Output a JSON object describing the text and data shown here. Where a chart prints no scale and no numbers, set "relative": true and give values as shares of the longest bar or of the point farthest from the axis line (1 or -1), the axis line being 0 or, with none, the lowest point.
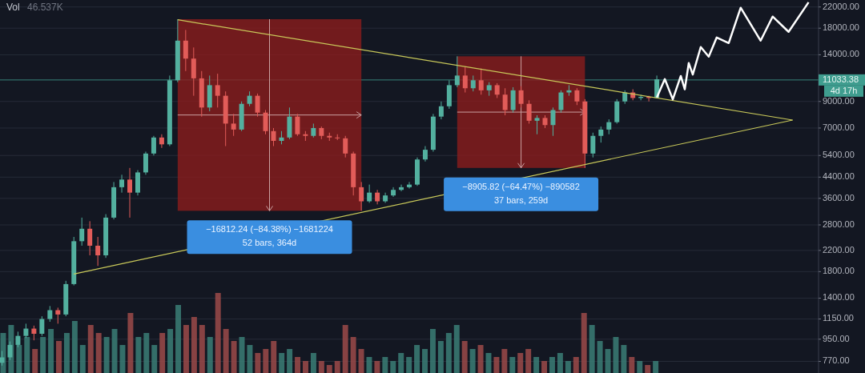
{
  "chart_data": [
    {
      "type": "candlestick",
      "log": true,
      "tick_labels": false,
      "ylim": [
        690,
        23500
      ],
      "categories": [
        null,
        null,
        null,
        null,
        null,
        null,
        null,
        null,
        null,
        null,
        null,
        null,
        null,
        null,
        null,
        null,
        null,
        null,
        null,
        null,
        null,
        null,
        null,
        null,
        null,
        null,
        null,
        null,
        null,
        null,
        null,
        null,
        null,
        null,
        null,
        null,
        null,
        null,
        null,
        null,
        null,
        null,
        null,
        null,
        null,
        null,
        null,
        null,
        null,
        null,
        null,
        null,
        null,
        null,
        null,
        null,
        null,
        null,
        null,
        null,
        null,
        null,
        null,
        null,
        null,
        null,
        null,
        null,
        null,
        null,
        null,
        null,
        null,
        null,
        null,
        null,
        null,
        null,
        null,
        null,
        null,
        null,
        null
      ],
      "ohlc": [
        [
          760,
          850,
          740,
          800
        ],
        [
          800,
          930,
          780,
          900
        ],
        [
          900,
          1020,
          880,
          980
        ],
        [
          980,
          1100,
          960,
          1050
        ],
        [
          1050,
          1080,
          940,
          1000
        ],
        [
          1000,
          1180,
          980,
          1150
        ],
        [
          1150,
          1300,
          1120,
          1250
        ],
        [
          1250,
          1280,
          1100,
          1200
        ],
        [
          1200,
          1650,
          1180,
          1600
        ],
        [
          1600,
          2500,
          1580,
          2400
        ],
        [
          2400,
          3000,
          2300,
          2700
        ],
        [
          2700,
          2900,
          2100,
          2300
        ],
        [
          2300,
          2500,
          1900,
          2100
        ],
        [
          2100,
          3100,
          2050,
          3000
        ],
        [
          3000,
          4200,
          2950,
          4000
        ],
        [
          4000,
          4500,
          3800,
          4300
        ],
        [
          4300,
          4800,
          3000,
          3800
        ],
        [
          3800,
          4700,
          3700,
          4600
        ],
        [
          4600,
          5600,
          4500,
          5500
        ],
        [
          5500,
          6500,
          5400,
          6400
        ],
        [
          6400,
          6600,
          5800,
          6000
        ],
        [
          6000,
          11500,
          5900,
          11000
        ],
        [
          11000,
          19600,
          10800,
          16000
        ],
        [
          16000,
          17700,
          12000,
          13500
        ],
        [
          13500,
          15000,
          9500,
          11200
        ],
        [
          11200,
          12000,
          7800,
          8500
        ],
        [
          8500,
          11500,
          8200,
          10500
        ],
        [
          10500,
          11700,
          8500,
          9500
        ],
        [
          9500,
          9900,
          5900,
          7300
        ],
        [
          7300,
          8000,
          6500,
          6900
        ],
        [
          6900,
          9000,
          6800,
          8800
        ],
        [
          8800,
          9900,
          8600,
          9500
        ],
        [
          9500,
          9700,
          7800,
          8100
        ],
        [
          8100,
          8300,
          6600,
          6800
        ],
        [
          6800,
          7000,
          5900,
          6200
        ],
        [
          6200,
          6800,
          6000,
          6400
        ],
        [
          6400,
          8500,
          6300,
          7800
        ],
        [
          7800,
          8000,
          6500,
          6600
        ],
        [
          6600,
          6800,
          6200,
          6500
        ],
        [
          6500,
          7300,
          6400,
          7000
        ],
        [
          7000,
          7100,
          6300,
          6500
        ],
        [
          6500,
          6700,
          6200,
          6400
        ],
        [
          6400,
          6600,
          6250,
          6350
        ],
        [
          6350,
          6500,
          5300,
          5500
        ],
        [
          5500,
          5600,
          3700,
          4000
        ],
        [
          4000,
          4200,
          3200,
          3500
        ],
        [
          3500,
          4100,
          3450,
          3800
        ],
        [
          3800,
          3900,
          3400,
          3500
        ],
        [
          3500,
          3800,
          3450,
          3700
        ],
        [
          3700,
          4000,
          3650,
          3900
        ],
        [
          3900,
          4100,
          3850,
          4000
        ],
        [
          4000,
          4200,
          3950,
          4100
        ],
        [
          4100,
          5300,
          4050,
          5200
        ],
        [
          5200,
          5900,
          5100,
          5700
        ],
        [
          5700,
          8000,
          5600,
          7800
        ],
        [
          7800,
          9000,
          7600,
          8600
        ],
        [
          8600,
          11000,
          8400,
          10500
        ],
        [
          10500,
          13800,
          10300,
          11500
        ],
        [
          11500,
          12500,
          9800,
          10200
        ],
        [
          10200,
          11500,
          9900,
          11000
        ],
        [
          11000,
          12300,
          9600,
          10000
        ],
        [
          10000,
          10800,
          9500,
          10500
        ],
        [
          10500,
          10700,
          9300,
          9600
        ],
        [
          9600,
          10200,
          7900,
          8300
        ],
        [
          8300,
          10300,
          8100,
          10000
        ],
        [
          10000,
          10400,
          8500,
          8800
        ],
        [
          8800,
          9100,
          7300,
          7500
        ],
        [
          7500,
          7900,
          6600,
          7700
        ],
        [
          7700,
          7900,
          7000,
          7200
        ],
        [
          7200,
          8500,
          6500,
          8300
        ],
        [
          8300,
          10000,
          8100,
          9800
        ],
        [
          9800,
          10500,
          9500,
          10000
        ],
        [
          10000,
          10200,
          8700,
          9000
        ],
        [
          9000,
          9200,
          4800,
          5500
        ],
        [
          5500,
          6700,
          5300,
          6500
        ],
        [
          6500,
          7100,
          6100,
          6900
        ],
        [
          6900,
          7600,
          6600,
          7400
        ],
        [
          7400,
          9200,
          7300,
          9000
        ],
        [
          9000,
          10000,
          8800,
          9800
        ],
        [
          9800,
          10100,
          9100,
          9300
        ],
        [
          9300,
          9600,
          9100,
          9400
        ],
        [
          9400,
          9500,
          9000,
          9300
        ],
        [
          9300,
          11500,
          9250,
          11100
        ]
      ],
      "colors": [
        "#53b09f",
        "#53b09f",
        "#53b09f",
        "#53b09f",
        "#e25c59",
        "#53b09f",
        "#53b09f",
        "#e25c59",
        "#53b09f",
        "#53b09f",
        "#53b09f",
        "#e25c59",
        "#e25c59",
        "#53b09f",
        "#53b09f",
        "#53b09f",
        "#e25c59",
        "#53b09f",
        "#53b09f",
        "#53b09f",
        "#e25c59",
        "#53b09f",
        "#53b09f",
        "#e25c59",
        "#e25c59",
        "#e25c59",
        "#53b09f",
        "#e25c59",
        "#e25c59",
        "#e25c59",
        "#53b09f",
        "#53b09f",
        "#e25c59",
        "#e25c59",
        "#e25c59",
        "#53b09f",
        "#53b09f",
        "#e25c59",
        "#e25c59",
        "#53b09f",
        "#e25c59",
        "#e25c59",
        "#e25c59",
        "#e25c59",
        "#e25c59",
        "#e25c59",
        "#53b09f",
        "#e25c59",
        "#53b09f",
        "#53b09f",
        "#53b09f",
        "#53b09f",
        "#53b09f",
        "#53b09f",
        "#53b09f",
        "#53b09f",
        "#53b09f",
        "#53b09f",
        "#e25c59",
        "#53b09f",
        "#e25c59",
        "#53b09f",
        "#e25c59",
        "#e25c59",
        "#53b09f",
        "#e25c59",
        "#e25c59",
        "#53b09f",
        "#e25c59",
        "#53b09f",
        "#53b09f",
        "#53b09f",
        "#e25c59",
        "#e25c59",
        "#53b09f",
        "#53b09f",
        "#53b09f",
        "#53b09f",
        "#53b09f",
        "#e25c59",
        "#53b09f",
        "#e25c59",
        "#53b09f"
      ],
      "bands": [
        {
          "axis": "y",
          "from": 3200,
          "to": 19600,
          "color": "#8b1d1d"
        },
        {
          "axis": "y",
          "from": 4800,
          "to": 13800,
          "color": "#8b1d1d"
        }
      ],
      "annotations": [
        "−16812.24 (−84.38%) −1681224\n52 bars, 364d",
        "−8905.82 (−64.47%) −890582\n37 bars, 259d"
      ]
    },
    {
      "type": "bar",
      "relative": true,
      "title": "Vol",
      "annotations": [
        "46.537K"
      ],
      "categories": [
        null,
        null,
        null,
        null,
        null,
        null,
        null,
        null,
        null,
        null,
        null,
        null,
        null,
        null,
        null,
        null,
        null,
        null,
        null,
        null,
        null,
        null,
        null,
        null,
        null,
        null,
        null,
        null,
        null,
        null,
        null,
        null,
        null,
        null,
        null,
        null,
        null,
        null,
        null,
        null,
        null,
        null,
        null,
        null,
        null,
        null,
        null,
        null,
        null,
        null,
        null,
        null,
        null,
        null,
        null,
        null,
        null,
        null,
        null,
        null,
        null,
        null,
        null,
        null,
        null,
        null,
        null,
        null,
        null,
        null,
        null,
        null,
        null,
        null,
        null,
        null,
        null,
        null,
        null,
        null,
        null,
        null,
        null
      ],
      "values": [
        0.5,
        0.6,
        0.35,
        0.45,
        0.3,
        0.45,
        0.55,
        0.4,
        0.5,
        0.65,
        0.35,
        0.6,
        0.5,
        0.45,
        0.55,
        0.35,
        0.75,
        0.45,
        0.5,
        0.35,
        0.5,
        0.55,
        0.85,
        0.6,
        0.7,
        0.6,
        0.45,
        1.0,
        0.55,
        0.4,
        0.45,
        0.35,
        0.25,
        0.3,
        0.4,
        0.25,
        0.3,
        0.2,
        0.15,
        0.25,
        0.15,
        0.1,
        0.15,
        0.6,
        0.45,
        0.3,
        0.2,
        0.15,
        0.2,
        0.15,
        0.25,
        0.2,
        0.35,
        0.3,
        0.55,
        0.4,
        0.5,
        0.6,
        0.4,
        0.3,
        0.35,
        0.25,
        0.2,
        0.3,
        0.2,
        0.25,
        0.3,
        0.2,
        0.15,
        0.2,
        0.25,
        0.15,
        0.2,
        0.75,
        0.6,
        0.4,
        0.3,
        0.45,
        0.35,
        0.2,
        0.15,
        0.1,
        0.15
      ],
      "colors": [
        "#3b7e76",
        "#3b7e76",
        "#3b7e76",
        "#3b7e76",
        "#9c4a49",
        "#3b7e76",
        "#3b7e76",
        "#9c4a49",
        "#3b7e76",
        "#3b7e76",
        "#3b7e76",
        "#9c4a49",
        "#9c4a49",
        "#3b7e76",
        "#3b7e76",
        "#3b7e76",
        "#9c4a49",
        "#3b7e76",
        "#3b7e76",
        "#3b7e76",
        "#9c4a49",
        "#3b7e76",
        "#3b7e76",
        "#9c4a49",
        "#9c4a49",
        "#9c4a49",
        "#3b7e76",
        "#9c4a49",
        "#9c4a49",
        "#9c4a49",
        "#3b7e76",
        "#3b7e76",
        "#9c4a49",
        "#9c4a49",
        "#9c4a49",
        "#3b7e76",
        "#3b7e76",
        "#9c4a49",
        "#9c4a49",
        "#3b7e76",
        "#9c4a49",
        "#9c4a49",
        "#9c4a49",
        "#9c4a49",
        "#9c4a49",
        "#9c4a49",
        "#3b7e76",
        "#9c4a49",
        "#3b7e76",
        "#3b7e76",
        "#3b7e76",
        "#3b7e76",
        "#3b7e76",
        "#3b7e76",
        "#3b7e76",
        "#3b7e76",
        "#3b7e76",
        "#3b7e76",
        "#9c4a49",
        "#3b7e76",
        "#9c4a49",
        "#3b7e76",
        "#9c4a49",
        "#9c4a49",
        "#3b7e76",
        "#9c4a49",
        "#9c4a49",
        "#3b7e76",
        "#9c4a49",
        "#3b7e76",
        "#3b7e76",
        "#3b7e76",
        "#9c4a49",
        "#9c4a49",
        "#3b7e76",
        "#3b7e76",
        "#3b7e76",
        "#3b7e76",
        "#3b7e76",
        "#9c4a49",
        "#3b7e76",
        "#9c4a49",
        "#3b7e76"
      ]
    },
    {
      "type": "line",
      "log": true,
      "grid": "y",
      "ylim": [
        690,
        23500
      ],
      "yticks": [
        {
          "value": 770,
          "label": "770.00"
        },
        {
          "value": 950,
          "label": "950.00"
        },
        {
          "value": 1150,
          "label": "1150.00"
        },
        {
          "value": 1400,
          "label": "1400.00"
        },
        {
          "value": 1800,
          "label": "1800.00"
        },
        {
          "value": 2200,
          "label": "2200.00"
        },
        {
          "value": 2800,
          "label": "2800.00"
        },
        {
          "value": 3600,
          "label": "3600.00"
        },
        {
          "value": 4400,
          "label": "4400.00"
        },
        {
          "value": 5400,
          "label": "5400.00"
        },
        {
          "value": 7000,
          "label": "7000.00"
        },
        {
          "value": 9000,
          "label": "9000.00"
        },
        {
          "value": 14000,
          "label": "14000.00"
        },
        {
          "value": 18000,
          "label": "18000.00"
        },
        {
          "value": 22000,
          "label": "22000.00"
        }
      ],
      "ref_lines": [
        {
          "axis": "y",
          "value": 11033.38,
          "label": "11033.38",
          "color": "#3f9d8f"
        }
      ],
      "annotations": [
        "4d 17h"
      ],
      "categories": [
        null,
        null,
        null,
        null,
        null,
        null,
        null,
        null,
        null,
        null,
        null,
        null,
        null,
        null,
        null,
        null,
        null,
        null,
        null,
        null,
        null,
        null,
        null,
        null,
        null,
        null,
        null,
        null,
        null,
        null,
        null,
        null,
        null,
        null,
        null,
        null,
        null,
        null,
        null,
        null,
        null,
        null,
        null,
        null,
        null,
        null,
        null,
        null,
        null,
        null,
        null,
        null,
        null,
        null,
        null,
        null,
        null,
        null,
        null,
        null,
        null,
        null,
        null,
        null,
        null,
        null,
        null,
        null,
        null,
        null,
        null,
        null,
        null,
        null,
        null,
        null,
        null,
        null,
        null,
        null,
        null,
        null,
        null,
        null,
        null,
        null,
        null,
        null,
        null,
        null,
        null,
        null,
        null,
        null,
        null,
        null,
        null,
        null,
        null,
        null,
        null,
        null,
        null,
        null,
        null,
        null,
        null,
        null,
        null,
        null,
        null,
        null,
        null,
        null,
        null,
        null,
        null,
        null,
        null,
        null,
        null,
        null,
        null,
        null,
        null,
        null,
        null,
        null,
        null,
        null,
        null,
        null,
        null,
        null,
        null,
        null,
        null,
        null,
        null,
        null,
        null,
        null,
        null,
        null,
        null,
        null,
        null,
        null,
        null,
        null,
        null,
        null,
        null,
        null,
        null,
        null,
        null,
        null,
        null,
        null,
        null,
        null,
        null,
        null,
        null,
        null,
        null,
        null,
        null,
        null,
        null,
        null,
        null,
        null,
        null,
        null,
        null,
        null,
        null,
        null,
        null,
        null,
        null,
        null,
        null,
        null,
        null,
        null,
        null,
        null,
        null,
        null,
        null,
        null,
        null,
        null,
        null,
        null,
        null,
        null,
        null,
        null,
        null,
        null,
        null
      ],
      "series": [
        {
          "color": "#c9c95a",
          "values": [
            null,
            null,
            null,
            null,
            null,
            null,
            null,
            null,
            null,
            null,
            null,
            null,
            null,
            null,
            null,
            null,
            null,
            null,
            null,
            null,
            null,
            null,
            null,
            null,
            null,
            null,
            null,
            null,
            null,
            null,
            null,
            null,
            null,
            null,
            null,
            null,
            null,
            null,
            null,
            null,
            null,
            null,
            null,
            null,
            19490,
            null,
            null,
            null,
            null,
            null,
            null,
            null,
            null,
            null,
            null,
            null,
            null,
            null,
            null,
            null,
            null,
            null,
            null,
            null,
            null,
            null,
            null,
            null,
            null,
            null,
            null,
            null,
            null,
            null,
            null,
            null,
            null,
            null,
            null,
            null,
            null,
            null,
            null,
            null,
            null,
            null,
            null,
            null,
            null,
            null,
            null,
            null,
            null,
            null,
            null,
            null,
            null,
            null,
            null,
            null,
            null,
            null,
            null,
            null,
            null,
            null,
            null,
            null,
            null,
            null,
            null,
            null,
            null,
            null,
            null,
            null,
            null,
            null,
            null,
            null,
            null,
            null,
            null,
            null,
            null,
            null,
            null,
            null,
            null,
            null,
            null,
            null,
            null,
            null,
            null,
            null,
            null,
            null,
            null,
            null,
            null,
            null,
            null,
            null,
            null,
            null,
            null,
            null,
            null,
            null,
            null,
            null,
            null,
            null,
            null,
            null,
            null,
            null,
            null,
            null,
            null,
            null,
            null,
            null,
            null,
            null,
            null,
            null,
            null,
            null,
            null,
            null,
            null,
            null,
            null,
            null,
            null,
            null,
            null,
            null,
            null,
            null,
            null,
            null,
            null,
            null,
            null,
            null,
            null,
            null,
            null,
            null,
            null,
            null,
            null,
            null,
            null,
            null,
            7550,
            null,
            null,
            null,
            null,
            null,
            null
          ]
        },
        {
          "color": "#c9c95a",
          "values": [
            null,
            null,
            null,
            null,
            null,
            null,
            null,
            null,
            null,
            null,
            null,
            null,
            null,
            null,
            null,
            null,
            null,
            null,
            1760,
            null,
            null,
            null,
            null,
            null,
            null,
            null,
            null,
            null,
            null,
            null,
            null,
            null,
            null,
            null,
            null,
            null,
            null,
            null,
            null,
            null,
            null,
            null,
            null,
            null,
            null,
            null,
            null,
            null,
            null,
            null,
            null,
            null,
            null,
            null,
            null,
            null,
            null,
            null,
            null,
            null,
            null,
            null,
            null,
            null,
            null,
            null,
            null,
            null,
            null,
            null,
            null,
            null,
            null,
            null,
            null,
            null,
            null,
            null,
            null,
            null,
            null,
            null,
            null,
            null,
            null,
            null,
            null,
            null,
            null,
            null,
            null,
            null,
            null,
            null,
            null,
            null,
            null,
            null,
            null,
            null,
            null,
            null,
            null,
            null,
            null,
            null,
            null,
            null,
            null,
            null,
            null,
            null,
            null,
            null,
            null,
            null,
            null,
            null,
            null,
            null,
            null,
            null,
            null,
            null,
            null,
            null,
            null,
            null,
            null,
            null,
            null,
            null,
            null,
            null,
            null,
            null,
            null,
            null,
            null,
            null,
            null,
            null,
            null,
            null,
            null,
            null,
            null,
            null,
            null,
            null,
            null,
            null,
            null,
            null,
            null,
            null,
            null,
            null,
            null,
            null,
            null,
            null,
            null,
            null,
            null,
            null,
            null,
            null,
            null,
            null,
            null,
            null,
            null,
            null,
            null,
            null,
            null,
            null,
            null,
            null,
            null,
            null,
            null,
            null,
            null,
            null,
            null,
            null,
            null,
            null,
            null,
            null,
            null,
            null,
            null,
            null,
            null,
            null,
            7550,
            null,
            null,
            null,
            null,
            null,
            null
          ]
        },
        {
          "color": "#ffffff",
          "values": [
            null,
            null,
            null,
            null,
            null,
            null,
            null,
            null,
            null,
            null,
            null,
            null,
            null,
            null,
            null,
            null,
            null,
            null,
            null,
            null,
            null,
            null,
            null,
            null,
            null,
            null,
            null,
            null,
            null,
            null,
            null,
            null,
            null,
            null,
            null,
            null,
            null,
            null,
            null,
            null,
            null,
            null,
            null,
            null,
            null,
            null,
            null,
            null,
            null,
            null,
            null,
            null,
            null,
            null,
            null,
            null,
            null,
            null,
            null,
            null,
            null,
            null,
            null,
            null,
            null,
            null,
            null,
            null,
            null,
            null,
            null,
            null,
            null,
            null,
            null,
            null,
            null,
            null,
            null,
            null,
            null,
            null,
            null,
            null,
            null,
            null,
            null,
            null,
            null,
            null,
            null,
            null,
            null,
            null,
            null,
            null,
            null,
            null,
            null,
            null,
            null,
            null,
            null,
            null,
            null,
            null,
            null,
            null,
            null,
            null,
            null,
            null,
            null,
            null,
            null,
            null,
            null,
            null,
            null,
            null,
            null,
            null,
            null,
            null,
            null,
            null,
            null,
            null,
            null,
            null,
            null,
            null,
            null,
            null,
            null,
            null,
            null,
            null,
            null,
            null,
            null,
            null,
            null,
            null,
            null,
            null,
            null,
            null,
            null,
            null,
            null,
            null,
            null,
            null,
            null,
            null,
            null,
            null,
            null,
            null,
            null,
            null,
            null,
            null,
            9345,
            null,
            11120,
            null,
            9180,
            null,
            11450,
            10100,
            12940,
            11610,
            null,
            15060,
            null,
            13750,
            null,
            16490,
            null,
            null,
            15640,
            null,
            null,
            21840,
            null,
            null,
            null,
            null,
            16000,
            null,
            null,
            20090,
            null,
            null,
            null,
            17390,
            null,
            null,
            null,
            null,
            23000,
            null,
            null
          ]
        }
      ]
    }
  ]
}
